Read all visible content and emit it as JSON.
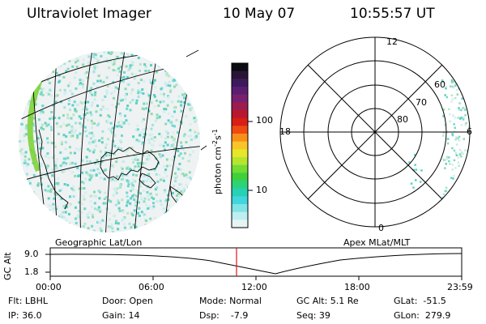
{
  "header": {
    "instrument": "Ultraviolet Imager",
    "date": "10 May 07",
    "time": "10:55:57 UT"
  },
  "colorbar": {
    "unit_label": "photon cm-2s-1",
    "ticks": [
      "100",
      "10"
    ],
    "colors_top_to_bottom": [
      "#0b0b12",
      "#2a1436",
      "#3c1a5c",
      "#5a1e70",
      "#7a1f6e",
      "#9b1d50",
      "#b8182d",
      "#d81e16",
      "#ef4a10",
      "#f7901a",
      "#f9c426",
      "#e6e62a",
      "#b6e52f",
      "#74dc32",
      "#3fd13c",
      "#2bd47a",
      "#27d1b6",
      "#3fd6dc",
      "#7fe3e8",
      "#bdeef0",
      "#e6f4f5"
    ]
  },
  "geo_map": {
    "label": "Geographic Lat/Lon"
  },
  "polar_plot": {
    "label": "Apex MLat/MLT",
    "mlt_labels": {
      "top": "12",
      "left": "18",
      "right": "6",
      "bottom": "0"
    },
    "lat_labels": [
      "60",
      "70",
      "80"
    ]
  },
  "orbit": {
    "axis_label": "GC Alt",
    "y_ticks": [
      "9.0",
      "1.8"
    ],
    "x_ticks": [
      "00:00",
      "06:00",
      "12:00",
      "18:00",
      "23:59"
    ],
    "current_marker_time": "10:55:57"
  },
  "info": {
    "flt": "Flt: LBHL",
    "ip": "IP: 36.0",
    "door": "Door: Open",
    "gain": "Gain: 14",
    "mode": "Mode: Normal",
    "dsp": "Dsp:    -7.9",
    "gc_alt": "GC Alt: 5.1 Re",
    "seq": "Seq: 39",
    "glat": "GLat:  -51.5",
    "glon": "GLon:  279.9"
  }
}
